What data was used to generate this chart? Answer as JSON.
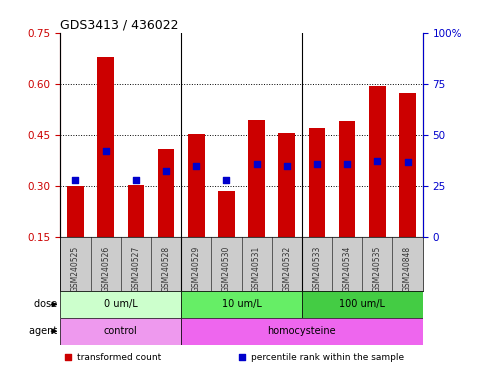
{
  "title": "GDS3413 / 436022",
  "samples": [
    "GSM240525",
    "GSM240526",
    "GSM240527",
    "GSM240528",
    "GSM240529",
    "GSM240530",
    "GSM240531",
    "GSM240532",
    "GSM240533",
    "GSM240534",
    "GSM240535",
    "GSM240848"
  ],
  "transformed_count": [
    0.302,
    0.678,
    0.303,
    0.41,
    0.453,
    0.285,
    0.495,
    0.455,
    0.47,
    0.49,
    0.595,
    0.572
  ],
  "percentile_rank": [
    0.317,
    0.402,
    0.317,
    0.345,
    0.36,
    0.317,
    0.365,
    0.36,
    0.365,
    0.365,
    0.375,
    0.37
  ],
  "bar_color": "#cc0000",
  "dot_color": "#0000cc",
  "ylim_left": [
    0.15,
    0.75
  ],
  "ylim_right": [
    0,
    100
  ],
  "yticks_left": [
    0.15,
    0.3,
    0.45,
    0.6,
    0.75
  ],
  "yticks_right": [
    0,
    25,
    50,
    75,
    100
  ],
  "ytick_labels_left": [
    "0.15",
    "0.30",
    "0.45",
    "0.60",
    "0.75"
  ],
  "ytick_labels_right": [
    "0",
    "25",
    "50",
    "75",
    "100%"
  ],
  "left_tick_color": "#cc0000",
  "right_tick_color": "#0000cc",
  "dose_groups": [
    {
      "label": "0 um/L",
      "start": 0,
      "end": 4,
      "color": "#ccffcc"
    },
    {
      "label": "10 um/L",
      "start": 4,
      "end": 8,
      "color": "#66ee66"
    },
    {
      "label": "100 um/L",
      "start": 8,
      "end": 12,
      "color": "#44cc44"
    }
  ],
  "agent_groups": [
    {
      "label": "control",
      "start": 0,
      "end": 4,
      "color": "#ee99ee"
    },
    {
      "label": "homocysteine",
      "start": 4,
      "end": 12,
      "color": "#ee66ee"
    }
  ],
  "dose_label": "dose",
  "agent_label": "agent",
  "legend_items": [
    {
      "label": "transformed count",
      "color": "#cc0000",
      "marker": "s"
    },
    {
      "label": "percentile rank within the sample",
      "color": "#0000cc",
      "marker": "s"
    }
  ],
  "bar_width": 0.55,
  "sample_band_color": "#cccccc",
  "bg_color": "#ffffff",
  "group_sep_indices": [
    4,
    8
  ],
  "grid_yticks": [
    0.3,
    0.45,
    0.6
  ]
}
